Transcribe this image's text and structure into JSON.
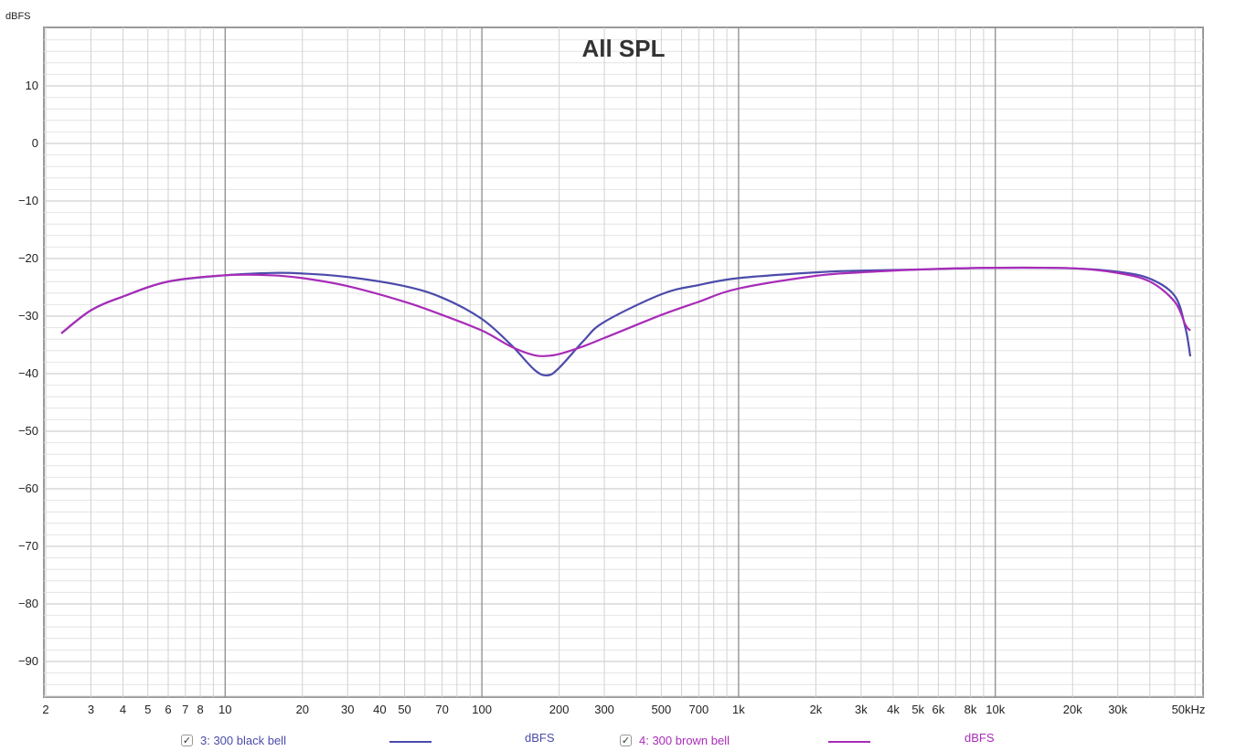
{
  "chart_data": {
    "type": "line",
    "title": "All SPL",
    "ylabel": "dBFS",
    "xlabel": "",
    "x_scale": "log",
    "xlim": [
      2,
      60000
    ],
    "ylim": [
      -96,
      20
    ],
    "grid": true,
    "x_ticks": [
      {
        "v": 2,
        "label": "2"
      },
      {
        "v": 3,
        "label": "3"
      },
      {
        "v": 4,
        "label": "4"
      },
      {
        "v": 5,
        "label": "5"
      },
      {
        "v": 6,
        "label": "6"
      },
      {
        "v": 7,
        "label": "7"
      },
      {
        "v": 8,
        "label": "8"
      },
      {
        "v": 10,
        "label": "10"
      },
      {
        "v": 20,
        "label": "20"
      },
      {
        "v": 30,
        "label": "30"
      },
      {
        "v": 40,
        "label": "40"
      },
      {
        "v": 50,
        "label": "50"
      },
      {
        "v": 70,
        "label": "70"
      },
      {
        "v": 100,
        "label": "100"
      },
      {
        "v": 200,
        "label": "200"
      },
      {
        "v": 300,
        "label": "300"
      },
      {
        "v": 500,
        "label": "500"
      },
      {
        "v": 700,
        "label": "700"
      },
      {
        "v": 1000,
        "label": "1k"
      },
      {
        "v": 2000,
        "label": "2k"
      },
      {
        "v": 3000,
        "label": "3k"
      },
      {
        "v": 4000,
        "label": "4k"
      },
      {
        "v": 5000,
        "label": "5k"
      },
      {
        "v": 6000,
        "label": "6k"
      },
      {
        "v": 8000,
        "label": "8k"
      },
      {
        "v": 10000,
        "label": "10k"
      },
      {
        "v": 20000,
        "label": "20k"
      },
      {
        "v": 30000,
        "label": "30k"
      },
      {
        "v": 50000,
        "label": "50kHz"
      }
    ],
    "y_ticks": [
      10,
      0,
      -10,
      -20,
      -30,
      -40,
      -50,
      -60,
      -70,
      -80,
      -90
    ],
    "series": [
      {
        "name": "3: 300 black bell",
        "unit": "dBFS",
        "color": "#4b4bab",
        "points": [
          [
            2.3,
            -33.0
          ],
          [
            3,
            -29.0
          ],
          [
            4,
            -26.6
          ],
          [
            6,
            -24.0
          ],
          [
            10,
            -22.9
          ],
          [
            15,
            -22.5
          ],
          [
            20,
            -22.6
          ],
          [
            30,
            -23.2
          ],
          [
            50,
            -24.8
          ],
          [
            70,
            -26.8
          ],
          [
            100,
            -30.5
          ],
          [
            130,
            -35.0
          ],
          [
            160,
            -39.3
          ],
          [
            180,
            -40.3
          ],
          [
            200,
            -39.0
          ],
          [
            250,
            -34.2
          ],
          [
            300,
            -31.0
          ],
          [
            500,
            -26.2
          ],
          [
            700,
            -24.6
          ],
          [
            1000,
            -23.4
          ],
          [
            2000,
            -22.4
          ],
          [
            3000,
            -22.1
          ],
          [
            5000,
            -21.9
          ],
          [
            10000,
            -21.6
          ],
          [
            20000,
            -21.7
          ],
          [
            30000,
            -22.3
          ],
          [
            40000,
            -23.5
          ],
          [
            50000,
            -26.5
          ],
          [
            55000,
            -32.0
          ],
          [
            57500,
            -37.0
          ]
        ]
      },
      {
        "name": "4: 300 brown bell",
        "unit": "dBFS",
        "color": "#a82cb8",
        "points": [
          [
            2.3,
            -33.0
          ],
          [
            3,
            -29.0
          ],
          [
            4,
            -26.6
          ],
          [
            6,
            -24.0
          ],
          [
            10,
            -22.9
          ],
          [
            15,
            -22.9
          ],
          [
            20,
            -23.4
          ],
          [
            30,
            -24.8
          ],
          [
            50,
            -27.5
          ],
          [
            70,
            -29.8
          ],
          [
            100,
            -32.5
          ],
          [
            130,
            -35.3
          ],
          [
            160,
            -36.8
          ],
          [
            180,
            -36.9
          ],
          [
            200,
            -36.6
          ],
          [
            250,
            -35.2
          ],
          [
            300,
            -33.8
          ],
          [
            500,
            -29.8
          ],
          [
            700,
            -27.5
          ],
          [
            1000,
            -25.2
          ],
          [
            2000,
            -23.0
          ],
          [
            3000,
            -22.4
          ],
          [
            5000,
            -21.9
          ],
          [
            10000,
            -21.6
          ],
          [
            20000,
            -21.7
          ],
          [
            30000,
            -22.5
          ],
          [
            40000,
            -24.0
          ],
          [
            50000,
            -27.5
          ],
          [
            55000,
            -31.5
          ],
          [
            57500,
            -32.5
          ]
        ]
      }
    ]
  },
  "legend": [
    {
      "check": "✓",
      "label": "3: 300 black bell",
      "unit": "dBFS",
      "color": "#4b4bab"
    },
    {
      "check": "✓",
      "label": "4: 300 brown bell",
      "unit": "dBFS",
      "color": "#a82cb8"
    }
  ]
}
